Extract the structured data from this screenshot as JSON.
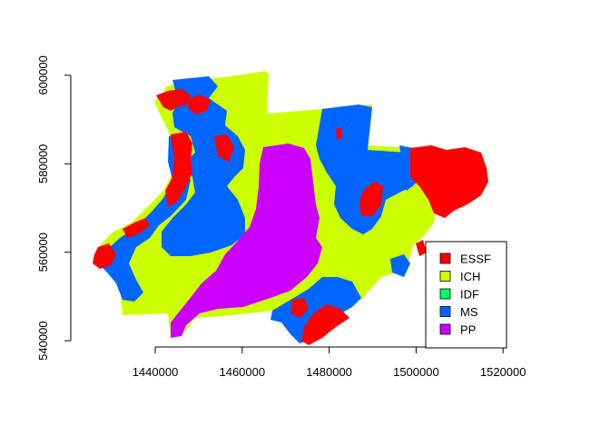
{
  "chart_data": {
    "type": "map",
    "x_ticks": [
      1440000,
      1460000,
      1480000,
      1500000,
      1520000
    ],
    "y_ticks": [
      540000,
      560000,
      580000,
      600000
    ],
    "xlim": [
      1421000,
      1521000
    ],
    "ylim": [
      539000,
      601000
    ],
    "legend": {
      "placement": "bottom-right",
      "entries": [
        {
          "label": "ESSF",
          "color": "#FF0000"
        },
        {
          "label": "ICH",
          "color": "#CCFF00"
        },
        {
          "label": "IDF",
          "color": "#00FF66"
        },
        {
          "label": "MS",
          "color": "#0066FF"
        },
        {
          "label": "PP",
          "color": "#CC00FF"
        }
      ]
    }
  }
}
